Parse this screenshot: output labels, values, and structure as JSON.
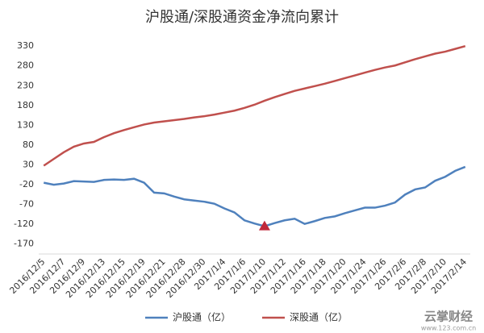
{
  "chart_data": {
    "type": "line",
    "title": "沪股通/深股通资金净流向累计",
    "categories": [
      "2016/12/5",
      null,
      "2016/12/7",
      null,
      "2016/12/9",
      null,
      "2016/12/13",
      null,
      "2016/12/15",
      null,
      "2016/12/19",
      null,
      "2016/12/21",
      null,
      "2016/12/28",
      null,
      "2016/12/30",
      null,
      "2017/1/4",
      null,
      "2017/1/6",
      null,
      "2017/1/10",
      null,
      "2017/1/12",
      null,
      "2017/1/16",
      null,
      "2017/1/18",
      null,
      "2017/1/20",
      null,
      "2017/1/24",
      null,
      "2017/1/26",
      null,
      "2017/2/6",
      null,
      "2017/2/8",
      null,
      "2017/2/10",
      null,
      "2017/2/14"
    ],
    "series": [
      {
        "name": "沪股通（亿）",
        "color": "#4f81bd",
        "values": [
          -15,
          -20,
          -17,
          -11,
          -12,
          -13,
          -8,
          -7,
          -8,
          -5,
          -15,
          -40,
          -42,
          -50,
          -57,
          -60,
          -63,
          -68,
          -80,
          -90,
          -110,
          -118,
          -125,
          -117,
          -110,
          -106,
          -119,
          -112,
          -104,
          -100,
          -92,
          -85,
          -78,
          -78,
          -73,
          -65,
          -45,
          -32,
          -27,
          -10,
          0,
          15,
          25
        ]
      },
      {
        "name": "深股通（亿）",
        "color": "#c0504d",
        "values": [
          28,
          45,
          62,
          76,
          84,
          88,
          100,
          110,
          118,
          125,
          132,
          137,
          140,
          143,
          146,
          150,
          153,
          157,
          162,
          167,
          174,
          182,
          192,
          201,
          209,
          217,
          223,
          229,
          235,
          242,
          249,
          256,
          263,
          270,
          276,
          281,
          289,
          297,
          304,
          311,
          316,
          323,
          330
        ]
      }
    ],
    "ylim": [
      -195,
      365
    ],
    "yticks": [
      -170,
      -120,
      -70,
      -20,
      30,
      80,
      130,
      180,
      230,
      280,
      330
    ],
    "grid": false,
    "legend": "bottom"
  },
  "watermark": {
    "brand": "云掌财经",
    "url": "www.123.com.cn"
  }
}
